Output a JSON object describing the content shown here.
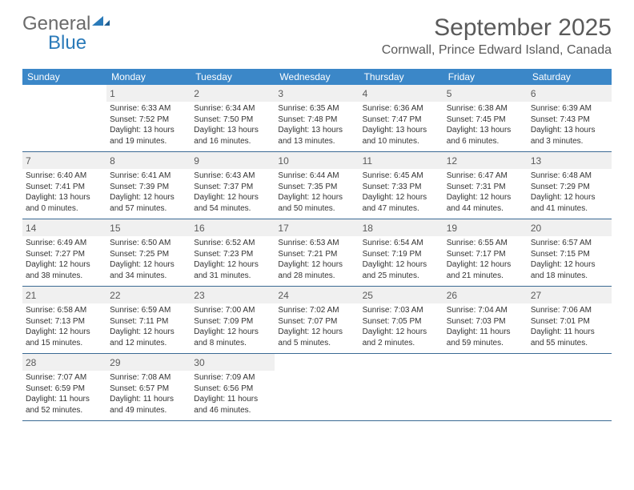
{
  "brand": {
    "word1": "General",
    "word2": "Blue"
  },
  "title": "September 2025",
  "location": "Cornwall, Prince Edward Island, Canada",
  "colors": {
    "header_bg": "#3b87c8",
    "header_text": "#ffffff",
    "week_border": "#3b6a94",
    "shaded_bg": "#f0f0f0",
    "text_gray": "#5a5a5a",
    "body_text": "#333333",
    "brand_gray": "#6b6b6b",
    "brand_blue": "#2a7ab9"
  },
  "dayNames": [
    "Sunday",
    "Monday",
    "Tuesday",
    "Wednesday",
    "Thursday",
    "Friday",
    "Saturday"
  ],
  "weeks": [
    [
      {
        "day": "",
        "sunrise": "",
        "sunset": "",
        "daylight": ""
      },
      {
        "day": "1",
        "sunrise": "6:33 AM",
        "sunset": "7:52 PM",
        "daylight": "13 hours and 19 minutes."
      },
      {
        "day": "2",
        "sunrise": "6:34 AM",
        "sunset": "7:50 PM",
        "daylight": "13 hours and 16 minutes."
      },
      {
        "day": "3",
        "sunrise": "6:35 AM",
        "sunset": "7:48 PM",
        "daylight": "13 hours and 13 minutes."
      },
      {
        "day": "4",
        "sunrise": "6:36 AM",
        "sunset": "7:47 PM",
        "daylight": "13 hours and 10 minutes."
      },
      {
        "day": "5",
        "sunrise": "6:38 AM",
        "sunset": "7:45 PM",
        "daylight": "13 hours and 6 minutes."
      },
      {
        "day": "6",
        "sunrise": "6:39 AM",
        "sunset": "7:43 PM",
        "daylight": "13 hours and 3 minutes."
      }
    ],
    [
      {
        "day": "7",
        "sunrise": "6:40 AM",
        "sunset": "7:41 PM",
        "daylight": "13 hours and 0 minutes."
      },
      {
        "day": "8",
        "sunrise": "6:41 AM",
        "sunset": "7:39 PM",
        "daylight": "12 hours and 57 minutes."
      },
      {
        "day": "9",
        "sunrise": "6:43 AM",
        "sunset": "7:37 PM",
        "daylight": "12 hours and 54 minutes."
      },
      {
        "day": "10",
        "sunrise": "6:44 AM",
        "sunset": "7:35 PM",
        "daylight": "12 hours and 50 minutes."
      },
      {
        "day": "11",
        "sunrise": "6:45 AM",
        "sunset": "7:33 PM",
        "daylight": "12 hours and 47 minutes."
      },
      {
        "day": "12",
        "sunrise": "6:47 AM",
        "sunset": "7:31 PM",
        "daylight": "12 hours and 44 minutes."
      },
      {
        "day": "13",
        "sunrise": "6:48 AM",
        "sunset": "7:29 PM",
        "daylight": "12 hours and 41 minutes."
      }
    ],
    [
      {
        "day": "14",
        "sunrise": "6:49 AM",
        "sunset": "7:27 PM",
        "daylight": "12 hours and 38 minutes."
      },
      {
        "day": "15",
        "sunrise": "6:50 AM",
        "sunset": "7:25 PM",
        "daylight": "12 hours and 34 minutes."
      },
      {
        "day": "16",
        "sunrise": "6:52 AM",
        "sunset": "7:23 PM",
        "daylight": "12 hours and 31 minutes."
      },
      {
        "day": "17",
        "sunrise": "6:53 AM",
        "sunset": "7:21 PM",
        "daylight": "12 hours and 28 minutes."
      },
      {
        "day": "18",
        "sunrise": "6:54 AM",
        "sunset": "7:19 PM",
        "daylight": "12 hours and 25 minutes."
      },
      {
        "day": "19",
        "sunrise": "6:55 AM",
        "sunset": "7:17 PM",
        "daylight": "12 hours and 21 minutes."
      },
      {
        "day": "20",
        "sunrise": "6:57 AM",
        "sunset": "7:15 PM",
        "daylight": "12 hours and 18 minutes."
      }
    ],
    [
      {
        "day": "21",
        "sunrise": "6:58 AM",
        "sunset": "7:13 PM",
        "daylight": "12 hours and 15 minutes."
      },
      {
        "day": "22",
        "sunrise": "6:59 AM",
        "sunset": "7:11 PM",
        "daylight": "12 hours and 12 minutes."
      },
      {
        "day": "23",
        "sunrise": "7:00 AM",
        "sunset": "7:09 PM",
        "daylight": "12 hours and 8 minutes."
      },
      {
        "day": "24",
        "sunrise": "7:02 AM",
        "sunset": "7:07 PM",
        "daylight": "12 hours and 5 minutes."
      },
      {
        "day": "25",
        "sunrise": "7:03 AM",
        "sunset": "7:05 PM",
        "daylight": "12 hours and 2 minutes."
      },
      {
        "day": "26",
        "sunrise": "7:04 AM",
        "sunset": "7:03 PM",
        "daylight": "11 hours and 59 minutes."
      },
      {
        "day": "27",
        "sunrise": "7:06 AM",
        "sunset": "7:01 PM",
        "daylight": "11 hours and 55 minutes."
      }
    ],
    [
      {
        "day": "28",
        "sunrise": "7:07 AM",
        "sunset": "6:59 PM",
        "daylight": "11 hours and 52 minutes."
      },
      {
        "day": "29",
        "sunrise": "7:08 AM",
        "sunset": "6:57 PM",
        "daylight": "11 hours and 49 minutes."
      },
      {
        "day": "30",
        "sunrise": "7:09 AM",
        "sunset": "6:56 PM",
        "daylight": "11 hours and 46 minutes."
      },
      {
        "day": "",
        "sunrise": "",
        "sunset": "",
        "daylight": ""
      },
      {
        "day": "",
        "sunrise": "",
        "sunset": "",
        "daylight": ""
      },
      {
        "day": "",
        "sunrise": "",
        "sunset": "",
        "daylight": ""
      },
      {
        "day": "",
        "sunrise": "",
        "sunset": "",
        "daylight": ""
      }
    ]
  ],
  "labels": {
    "sunrise": "Sunrise:",
    "sunset": "Sunset:",
    "daylight": "Daylight:"
  }
}
